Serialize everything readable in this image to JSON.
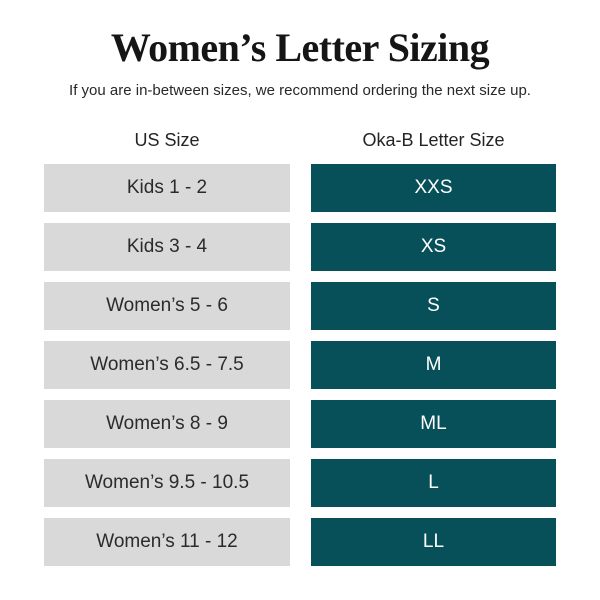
{
  "page": {
    "title": "Women’s Letter Sizing",
    "subtitle": "If you are in-between sizes, we recommend ordering the next size up."
  },
  "table": {
    "columns": [
      {
        "label": "US Size"
      },
      {
        "label": "Oka-B Letter Size"
      }
    ],
    "rows": [
      {
        "us_size": "Kids 1 - 2",
        "letter_size": "XXS"
      },
      {
        "us_size": "Kids 3 - 4",
        "letter_size": "XS"
      },
      {
        "us_size": "Women’s 5 - 6",
        "letter_size": "S"
      },
      {
        "us_size": "Women’s 6.5 - 7.5",
        "letter_size": "M"
      },
      {
        "us_size": "Women’s 8 - 9",
        "letter_size": "ML"
      },
      {
        "us_size": "Women’s 9.5 - 10.5",
        "letter_size": "L"
      },
      {
        "us_size": "Women’s 11 - 12",
        "letter_size": "LL"
      }
    ]
  },
  "colors": {
    "teal": "#07505a",
    "gray": "#d9d9d9",
    "text_dark": "#2b2b2b",
    "text_light": "#ffffff",
    "background": "#ffffff"
  },
  "chart_data": {
    "type": "table",
    "title": "Women’s Letter Sizing",
    "subtitle": "If you are in-between sizes, we recommend ordering the next size up.",
    "columns": [
      "US Size",
      "Oka-B Letter Size"
    ],
    "rows": [
      [
        "Kids 1 - 2",
        "XXS"
      ],
      [
        "Kids 3 - 4",
        "XS"
      ],
      [
        "Women’s 5 - 6",
        "S"
      ],
      [
        "Women’s 6.5 - 7.5",
        "M"
      ],
      [
        "Women’s 8 - 9",
        "ML"
      ],
      [
        "Women’s 9.5 - 10.5",
        "L"
      ],
      [
        "Women’s 11 - 12",
        "LL"
      ]
    ]
  }
}
